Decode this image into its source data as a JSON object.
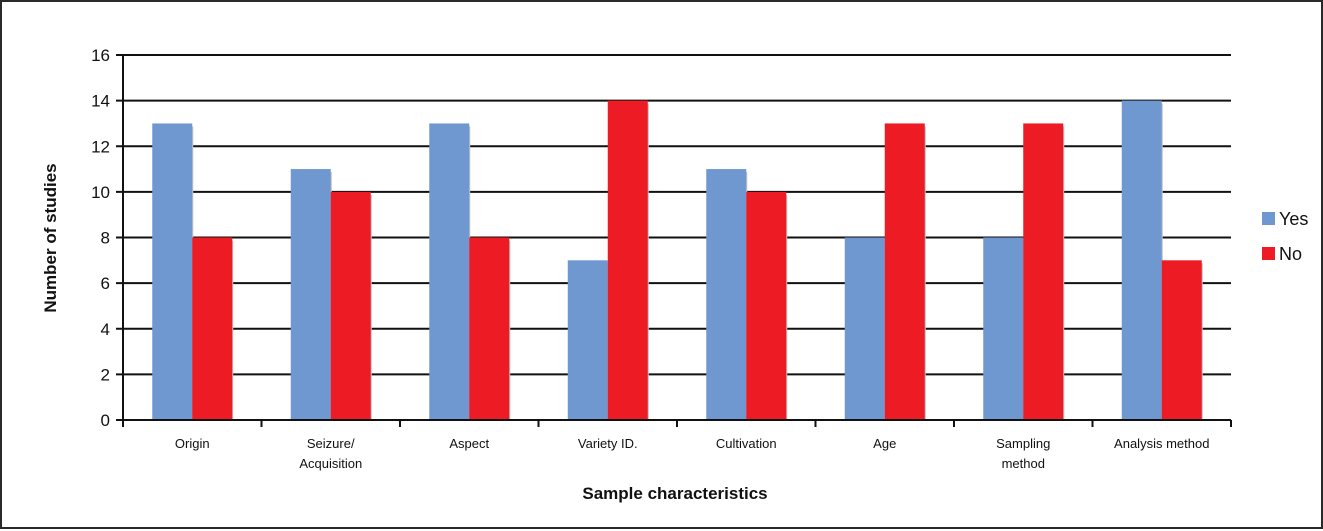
{
  "chart_data": {
    "type": "bar",
    "title": "",
    "xlabel": "Sample characteristics",
    "ylabel": "Number of studies",
    "ylim": [
      0,
      16
    ],
    "yticks": [
      0,
      2,
      4,
      6,
      8,
      10,
      12,
      14,
      16
    ],
    "grid": true,
    "legend_position": "right",
    "categories": [
      [
        "Origin"
      ],
      [
        "Seizure/",
        "Acquisition"
      ],
      [
        "Aspect"
      ],
      [
        "Variety  ID."
      ],
      [
        "Cultivation"
      ],
      [
        "Age"
      ],
      [
        "Sampling",
        "method"
      ],
      [
        "Analysis method"
      ]
    ],
    "series": [
      {
        "name": "Yes",
        "color": "#7098d0",
        "values": [
          13,
          11,
          13,
          7,
          11,
          8,
          8,
          14
        ]
      },
      {
        "name": "No",
        "color": "#ed1c24",
        "values": [
          8,
          10,
          8,
          14,
          10,
          13,
          13,
          7
        ]
      }
    ]
  }
}
